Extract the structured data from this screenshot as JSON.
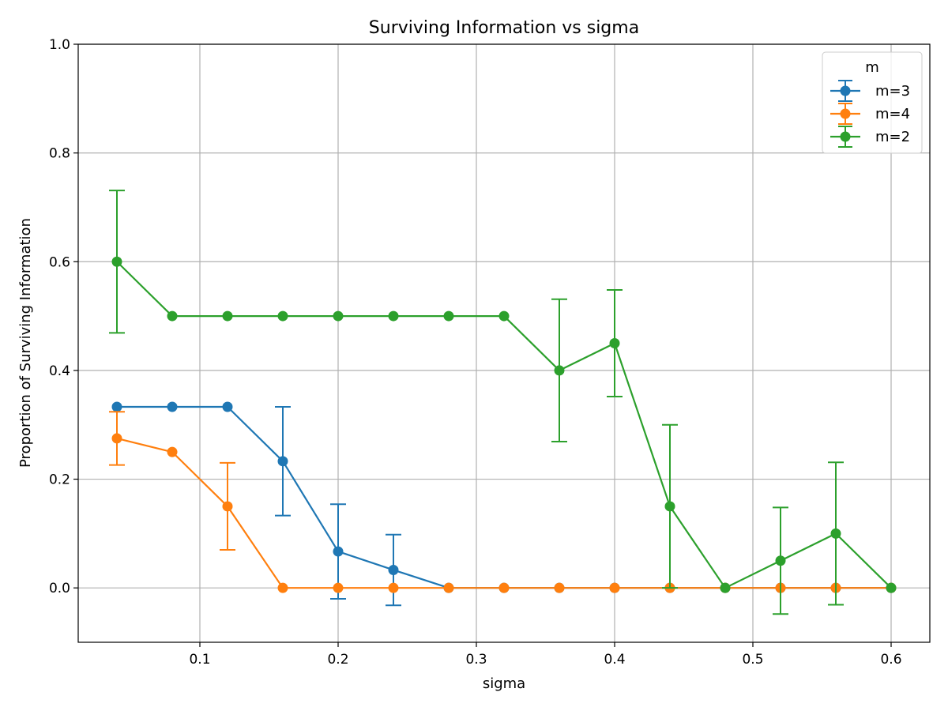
{
  "chart_data": {
    "type": "line",
    "title": "Surviving Information vs sigma",
    "xlabel": "sigma",
    "ylabel": "Proportion of Surviving Information",
    "xlim": [
      0.012,
      0.628
    ],
    "ylim": [
      -0.1,
      1.0
    ],
    "xticks": [
      0.1,
      0.2,
      0.3,
      0.4,
      0.5,
      0.6
    ],
    "xtick_labels": [
      "0.1",
      "0.2",
      "0.3",
      "0.4",
      "0.5",
      "0.6"
    ],
    "yticks": [
      0.0,
      0.2,
      0.4,
      0.6,
      0.8,
      1.0
    ],
    "ytick_labels": [
      "0.0",
      "0.2",
      "0.4",
      "0.6",
      "0.8",
      "1.0"
    ],
    "grid": true,
    "legend": {
      "title": "m",
      "placement": "top-right"
    },
    "series": [
      {
        "name": "m=3",
        "color": "#1f77b4",
        "x": [
          0.04,
          0.08,
          0.12,
          0.16,
          0.2,
          0.24,
          0.28,
          0.32,
          0.36,
          0.4,
          0.44,
          0.48,
          0.52,
          0.56,
          0.6
        ],
        "y": [
          0.333,
          0.333,
          0.333,
          0.233,
          0.067,
          0.033,
          0,
          0,
          0,
          0,
          0,
          0,
          0,
          0,
          0
        ],
        "err": [
          0,
          0,
          0,
          0.1,
          0.087,
          0.065,
          0,
          0,
          0,
          0,
          0,
          0,
          0,
          0,
          0
        ]
      },
      {
        "name": "m=4",
        "color": "#ff7f0e",
        "x": [
          0.04,
          0.08,
          0.12,
          0.16,
          0.2,
          0.24,
          0.28,
          0.32,
          0.36,
          0.4,
          0.44,
          0.48,
          0.52,
          0.56,
          0.6
        ],
        "y": [
          0.275,
          0.25,
          0.15,
          0,
          0,
          0,
          0,
          0,
          0,
          0,
          0,
          0,
          0,
          0,
          0
        ],
        "err": [
          0.049,
          0,
          0.08,
          0,
          0,
          0,
          0,
          0,
          0,
          0,
          0,
          0,
          0,
          0,
          0
        ]
      },
      {
        "name": "m=2",
        "color": "#2ca02c",
        "x": [
          0.04,
          0.08,
          0.12,
          0.16,
          0.2,
          0.24,
          0.28,
          0.32,
          0.36,
          0.4,
          0.44,
          0.48,
          0.52,
          0.56,
          0.6
        ],
        "y": [
          0.6,
          0.5,
          0.5,
          0.5,
          0.5,
          0.5,
          0.5,
          0.5,
          0.4,
          0.45,
          0.15,
          0,
          0.05,
          0.1,
          0
        ],
        "err": [
          0.131,
          0,
          0,
          0,
          0,
          0,
          0,
          0,
          0.131,
          0.098,
          0.15,
          0,
          0.098,
          0.131,
          0
        ]
      }
    ]
  }
}
